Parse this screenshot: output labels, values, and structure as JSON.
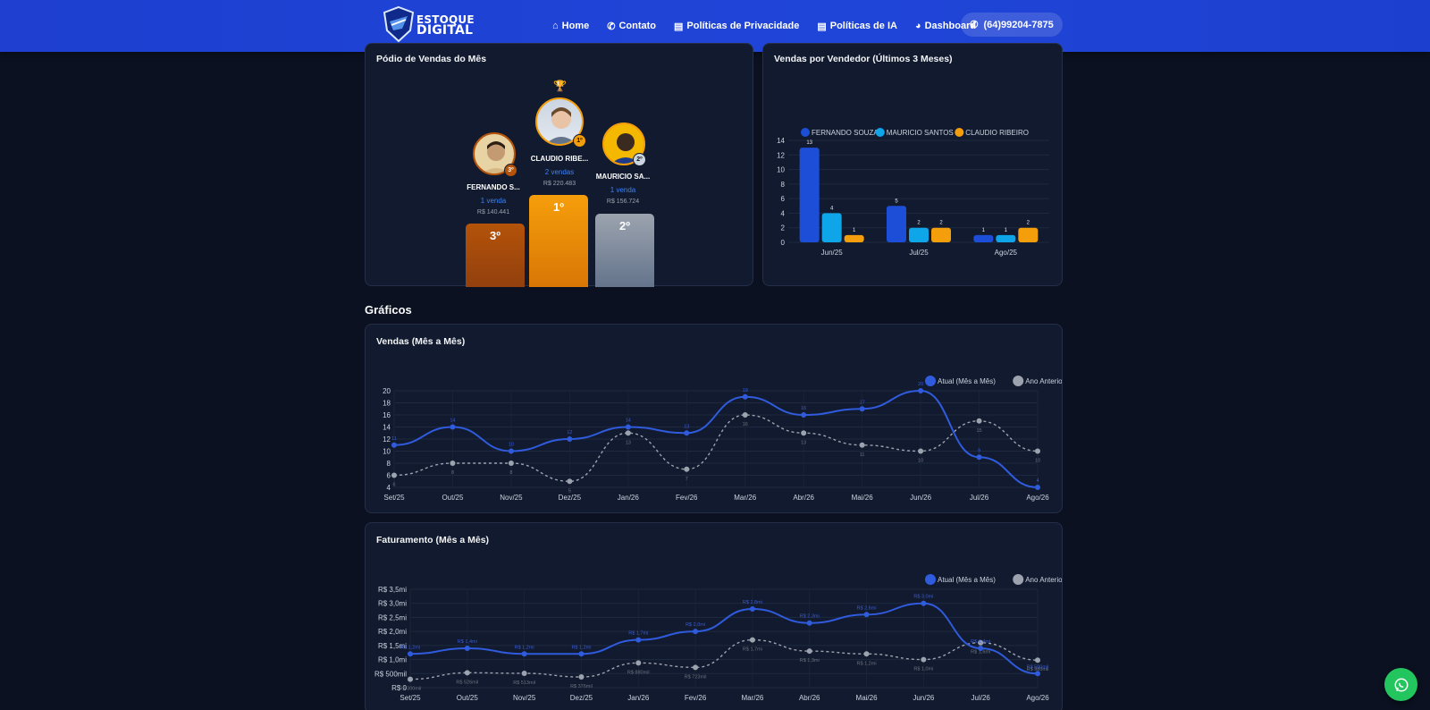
{
  "brand": {
    "line1": "ESTOQUE",
    "line2": "DIGITAL"
  },
  "nav": {
    "links": [
      {
        "label": "Home",
        "icon": "home-icon"
      },
      {
        "label": "Contato",
        "icon": "phone-handset-icon"
      },
      {
        "label": "Políticas de Privacidade",
        "icon": "document-icon"
      },
      {
        "label": "Políticas de IA",
        "icon": "document-icon"
      },
      {
        "label": "Dashboard",
        "icon": "dashboard-icon"
      }
    ],
    "phone": "(64)99204-7875"
  },
  "podium": {
    "title": "Pódio de Vendas do Mês",
    "trophy": "trophy-icon",
    "places": [
      {
        "rank": "1º",
        "badge": "1º",
        "name": "CLAUDIO RIBE...",
        "sales": "2 vendas",
        "value": "R$ 220.483",
        "color": "#f59e0b"
      },
      {
        "rank": "2º",
        "badge": "2º",
        "name": "MAURICIO SA...",
        "sales": "1 venda",
        "value": "R$ 156.724",
        "color": "#9ca3af"
      },
      {
        "rank": "3º",
        "badge": "3º",
        "name": "FERNANDO S...",
        "sales": "1 venda",
        "value": "R$ 140.441",
        "color": "#b45309"
      }
    ]
  },
  "sellers": {
    "title": "Vendas por Vendedor (Últimos 3 Meses)",
    "chart_data": {
      "type": "bar",
      "categories": [
        "Jun/25",
        "Jul/25",
        "Ago/25"
      ],
      "series": [
        {
          "name": "FERNANDO SOUZA",
          "values": [
            13,
            5,
            1
          ],
          "color": "#1d4ed8"
        },
        {
          "name": "MAURICIO SANTOS",
          "values": [
            4,
            2,
            1
          ],
          "color": "#0ea5e9"
        },
        {
          "name": "CLAUDIO RIBEIRO",
          "values": [
            1,
            2,
            2
          ],
          "color": "#f59e0b"
        }
      ],
      "yticks": [
        "14",
        "12",
        "10",
        "8",
        "6",
        "4",
        "2",
        "0"
      ],
      "ylim": [
        0,
        14
      ],
      "legend": "top-left"
    }
  },
  "section": {
    "title": "Gráficos"
  },
  "sales_chart": {
    "title": "Vendas (Mês a Mês)",
    "chart_data": {
      "type": "line",
      "x": [
        "Set/25",
        "Out/25",
        "Nov/25",
        "Dez/25",
        "Jan/26",
        "Fev/26",
        "Mar/26",
        "Abr/26",
        "Mai/26",
        "Jun/26",
        "Jul/26",
        "Ago/26"
      ],
      "series": [
        {
          "name": "Atual (Mês a Mês)",
          "values": [
            11,
            14,
            10,
            12,
            14,
            13,
            19,
            16,
            17,
            20,
            9,
            4
          ],
          "color": "#2f5bdc"
        },
        {
          "name": "Ano Anterior",
          "values": [
            6,
            8,
            8,
            5,
            13,
            7,
            16,
            13,
            11,
            10,
            15,
            10
          ],
          "color": "#9ca3af"
        }
      ],
      "yticks": [
        "20",
        "18",
        "16",
        "14",
        "12",
        "10",
        "8",
        "6",
        "4"
      ],
      "ylim": [
        4,
        20
      ],
      "legend": "top-right"
    }
  },
  "revenue_chart": {
    "title": "Faturamento (Mês a Mês)",
    "chart_data": {
      "type": "line",
      "x": [
        "Set/25",
        "Out/25",
        "Nov/25",
        "Dez/25",
        "Jan/26",
        "Fev/26",
        "Mar/26",
        "Abr/26",
        "Mai/26",
        "Jun/26",
        "Jul/26",
        "Ago/26"
      ],
      "series": [
        {
          "name": "Atual (Mês a Mês)",
          "values": [
            1.2,
            1.4,
            1.2,
            1.2,
            1.7,
            2.0,
            2.8,
            2.3,
            2.6,
            3.0,
            1.4,
            0.5
          ],
          "labels": [
            "R$ 1,2mi",
            "R$ 1,4mi",
            "R$ 1,2mi",
            "R$ 1,2mi",
            "R$ 1,7mi",
            "R$ 2,0mi",
            "R$ 2,8mi",
            "R$ 2,3mi",
            "R$ 2,6mi",
            "R$ 3,0mi",
            "R$ 1,4mi",
            "R$ 500mil"
          ],
          "color": "#2f5bdc"
        },
        {
          "name": "Ano Anterior",
          "values": [
            0.3,
            0.53,
            0.51,
            0.38,
            0.88,
            0.72,
            1.7,
            1.3,
            1.2,
            1.0,
            1.6,
            0.98
          ],
          "labels": [
            "R$ 300mil",
            "R$ 526mil",
            "R$ 513mil",
            "R$ 376mil",
            "R$ 880mil",
            "R$ 723mil",
            "R$ 1,7mi",
            "R$ 1,3mi",
            "R$ 1,2mi",
            "R$ 1,0mi",
            "R$ 1,6mi",
            "R$ 980mil"
          ],
          "color": "#9ca3af"
        }
      ],
      "yticks": [
        "R$ 3,5mi",
        "R$ 3,0mi",
        "R$ 2,5mi",
        "R$ 2,0mi",
        "R$ 1,5mi",
        "R$ 1,0mi",
        "R$ 500mil",
        "R$ 0"
      ],
      "ylim": [
        0,
        3.5
      ],
      "legend": "top-right"
    }
  },
  "whatsapp": {
    "icon": "whatsapp-icon"
  }
}
